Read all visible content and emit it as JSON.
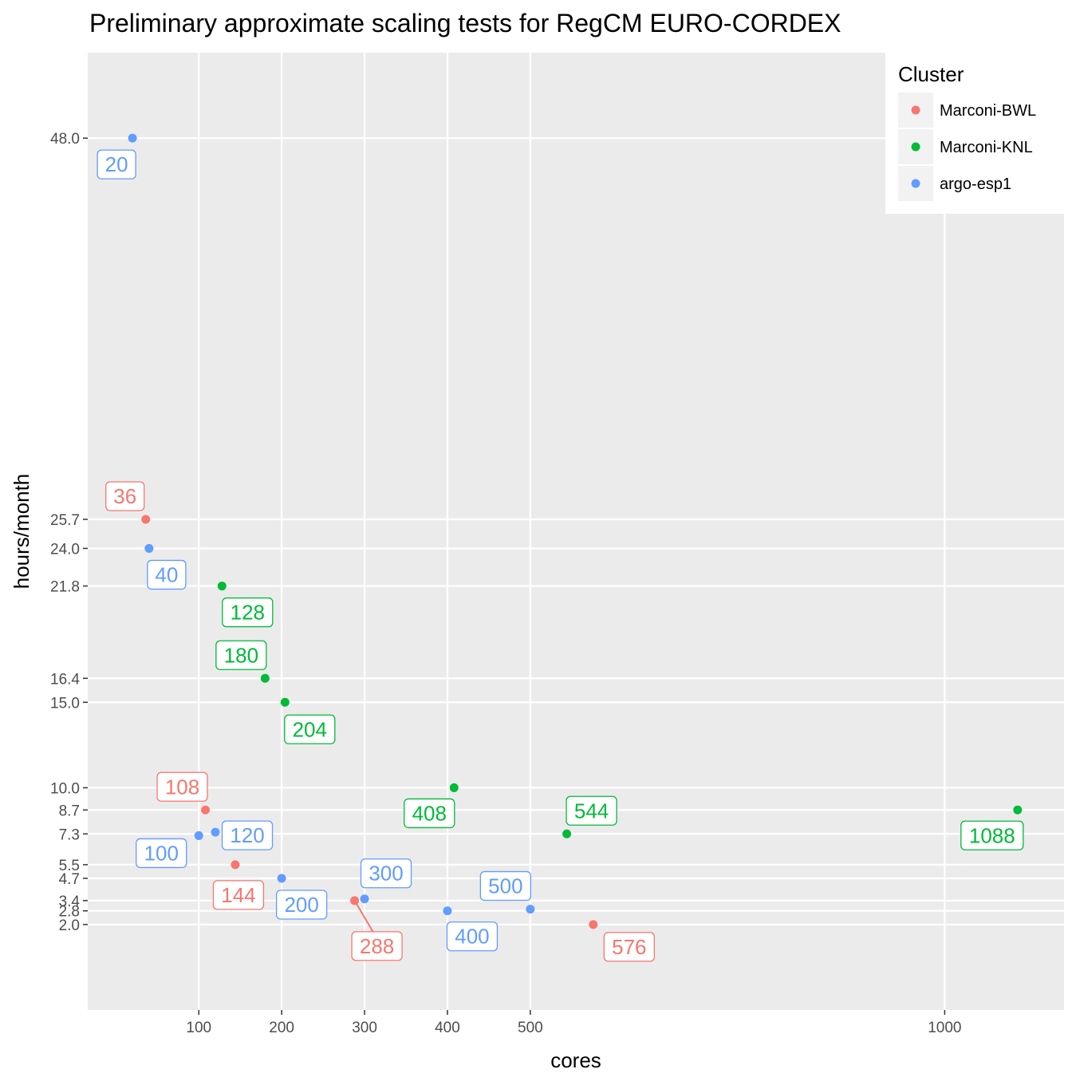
{
  "chart_data": {
    "type": "scatter",
    "title": "Preliminary approximate scaling tests for RegCM EURO-CORDEX",
    "xlabel": "cores",
    "ylabel": "hours/month",
    "xlim": [
      -34,
      1144
    ],
    "ylim": [
      -3,
      53
    ],
    "x_ticks": [
      100,
      200,
      300,
      400,
      500,
      1000
    ],
    "y_ticks": [
      2.0,
      2.8,
      3.4,
      4.7,
      5.5,
      7.3,
      8.7,
      10.0,
      15.0,
      16.4,
      21.8,
      24.0,
      25.7,
      48.0
    ],
    "grid": true,
    "legend": {
      "title": "Cluster",
      "position": "top-right",
      "entries": [
        {
          "name": "Marconi-BWL",
          "color": "#F8766D"
        },
        {
          "name": "Marconi-KNL",
          "color": "#00BA38"
        },
        {
          "name": "argo-esp1",
          "color": "#619CFF"
        }
      ]
    },
    "series": [
      {
        "name": "Marconi-BWL",
        "color": "#F8766D",
        "points": [
          {
            "x": 36,
            "y": 25.7,
            "label": "36"
          },
          {
            "x": 108,
            "y": 8.7,
            "label": "108"
          },
          {
            "x": 144,
            "y": 5.5,
            "label": "144"
          },
          {
            "x": 288,
            "y": 3.4,
            "label": "288"
          },
          {
            "x": 576,
            "y": 2.0,
            "label": "576"
          }
        ]
      },
      {
        "name": "Marconi-KNL",
        "color": "#00BA38",
        "points": [
          {
            "x": 128,
            "y": 21.8,
            "label": "128"
          },
          {
            "x": 180,
            "y": 16.4,
            "label": "180"
          },
          {
            "x": 204,
            "y": 15.0,
            "label": "204"
          },
          {
            "x": 408,
            "y": 10.0,
            "label": "408"
          },
          {
            "x": 544,
            "y": 7.3,
            "label": "544"
          },
          {
            "x": 1088,
            "y": 8.7,
            "label": "1088"
          }
        ]
      },
      {
        "name": "argo-esp1",
        "color": "#619CFF",
        "points": [
          {
            "x": 20,
            "y": 48.0,
            "label": "20"
          },
          {
            "x": 40,
            "y": 24.0,
            "label": "40"
          },
          {
            "x": 100,
            "y": 7.2,
            "label": "100"
          },
          {
            "x": 120,
            "y": 7.4,
            "label": "120"
          },
          {
            "x": 200,
            "y": 4.7,
            "label": "200"
          },
          {
            "x": 300,
            "y": 3.5,
            "label": "300"
          },
          {
            "x": 400,
            "y": 2.8,
            "label": "400"
          },
          {
            "x": 500,
            "y": 2.9,
            "label": "500"
          }
        ]
      }
    ]
  }
}
